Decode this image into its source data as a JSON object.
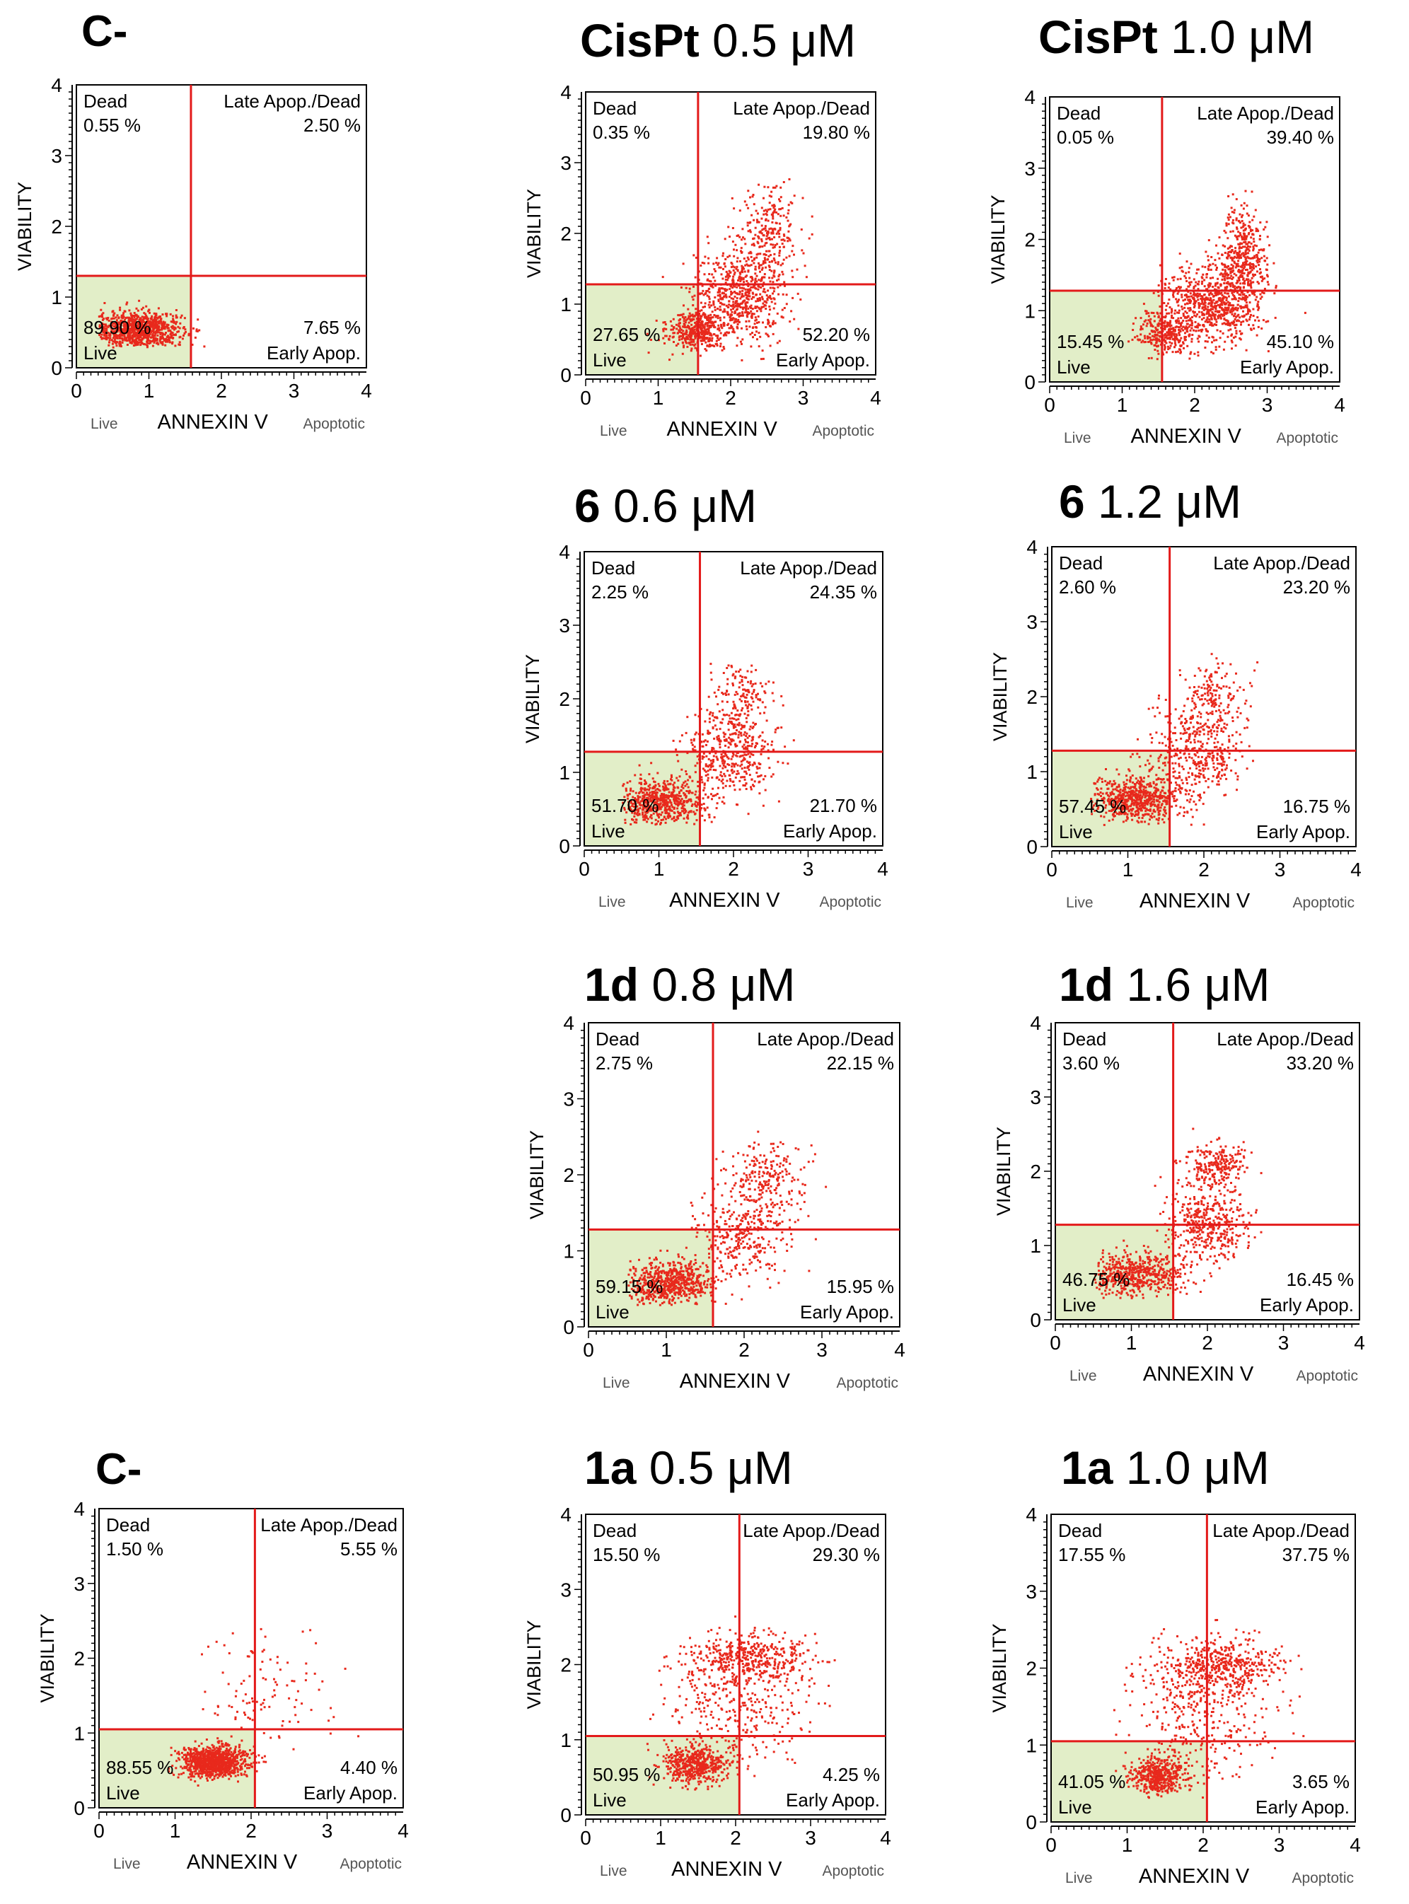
{
  "colors": {
    "dots": "#e8291c",
    "gate_line": "#e31a1a",
    "live_fill": "#e2eec8",
    "axis": "#000000",
    "frame": "#000000"
  },
  "common": {
    "xlabel": "ANNEXIN V",
    "ylabel": "VIABILITY",
    "x_left_label": "Live",
    "x_right_label": "Apoptotic",
    "x_ticks": [
      "0",
      "1",
      "2",
      "3",
      "4"
    ],
    "y_ticks": [
      "0",
      "1",
      "2",
      "3",
      "4"
    ],
    "q_dead": "Dead",
    "q_late": "Late Apop./Dead",
    "q_live": "Live",
    "q_early": "Early Apop."
  },
  "chart_data": [
    {
      "type": "scatter",
      "title_bold": "C-",
      "title_rest": "",
      "xlim": [
        0,
        4
      ],
      "ylim": [
        0,
        4
      ],
      "gate": {
        "x": 1.58,
        "y": 1.3
      },
      "quadrants": {
        "dead": "0.55 %",
        "late": "2.50 %",
        "live": "89.90 %",
        "early": "7.65 %"
      },
      "clusters": [
        {
          "x": 0.85,
          "y": 0.55,
          "sx": 0.3,
          "sy": 0.13,
          "n": 950
        }
      ],
      "scatter_extent": {
        "x": [
          0.3,
          2.3
        ],
        "y": [
          0.3,
          2.3
        ]
      }
    },
    {
      "type": "scatter",
      "title_bold": "CisPt",
      "title_rest": " 0.5 μM",
      "xlim": [
        0,
        4
      ],
      "ylim": [
        0,
        4
      ],
      "gate": {
        "x": 1.55,
        "y": 1.28
      },
      "quadrants": {
        "dead": "0.35 %",
        "late": "19.80 %",
        "live": "27.65 %",
        "early": "52.20 %"
      },
      "clusters": [
        {
          "x": 1.5,
          "y": 0.65,
          "sx": 0.2,
          "sy": 0.14,
          "n": 400
        },
        {
          "x": 2.1,
          "y": 1.1,
          "sx": 0.32,
          "sy": 0.32,
          "n": 650
        },
        {
          "x": 2.5,
          "y": 2.0,
          "sx": 0.22,
          "sy": 0.35,
          "n": 260
        }
      ],
      "scatter_extent": {
        "x": [
          0.7,
          3.5
        ],
        "y": [
          0.2,
          2.9
        ]
      }
    },
    {
      "type": "scatter",
      "title_bold": "CisPt",
      "title_rest": " 1.0 μM",
      "xlim": [
        0,
        4
      ],
      "ylim": [
        0,
        4
      ],
      "gate": {
        "x": 1.55,
        "y": 1.28
      },
      "quadrants": {
        "dead": "0.05 %",
        "late": "39.40 %",
        "live": "15.45 %",
        "early": "45.10 %"
      },
      "clusters": [
        {
          "x": 1.6,
          "y": 0.7,
          "sx": 0.2,
          "sy": 0.16,
          "n": 320
        },
        {
          "x": 2.2,
          "y": 1.1,
          "sx": 0.32,
          "sy": 0.28,
          "n": 650
        },
        {
          "x": 2.65,
          "y": 1.7,
          "sx": 0.16,
          "sy": 0.4,
          "n": 480
        }
      ],
      "scatter_extent": {
        "x": [
          0.5,
          3.6
        ],
        "y": [
          0.2,
          2.7
        ]
      }
    },
    {
      "type": "scatter",
      "title_bold": "6",
      "title_rest": " 0.6 μM",
      "xlim": [
        0,
        4
      ],
      "ylim": [
        0,
        4
      ],
      "gate": {
        "x": 1.55,
        "y": 1.28
      },
      "quadrants": {
        "dead": "2.25 %",
        "late": "24.35 %",
        "live": "51.70 %",
        "early": "21.70 %"
      },
      "clusters": [
        {
          "x": 1.0,
          "y": 0.6,
          "sx": 0.3,
          "sy": 0.16,
          "n": 640
        },
        {
          "x": 1.9,
          "y": 1.25,
          "sx": 0.32,
          "sy": 0.3,
          "n": 420
        },
        {
          "x": 2.1,
          "y": 2.0,
          "sx": 0.2,
          "sy": 0.25,
          "n": 160
        }
      ],
      "scatter_extent": {
        "x": [
          0.5,
          3.3
        ],
        "y": [
          0.3,
          2.6
        ]
      }
    },
    {
      "type": "scatter",
      "title_bold": "6",
      "title_rest": " 1.2 μM",
      "xlim": [
        0,
        4
      ],
      "ylim": [
        0,
        4
      ],
      "gate": {
        "x": 1.55,
        "y": 1.28
      },
      "quadrants": {
        "dead": "2.60 %",
        "late": "23.20 %",
        "live": "57.45 %",
        "early": "16.75 %"
      },
      "clusters": [
        {
          "x": 1.1,
          "y": 0.65,
          "sx": 0.3,
          "sy": 0.16,
          "n": 680
        },
        {
          "x": 1.9,
          "y": 1.3,
          "sx": 0.3,
          "sy": 0.3,
          "n": 380
        },
        {
          "x": 2.1,
          "y": 2.0,
          "sx": 0.22,
          "sy": 0.25,
          "n": 160
        }
      ],
      "scatter_extent": {
        "x": [
          0.5,
          3.4
        ],
        "y": [
          0.3,
          2.6
        ]
      }
    },
    {
      "type": "scatter",
      "title_bold": "1d",
      "title_rest": " 0.8 μM",
      "xlim": [
        0,
        4
      ],
      "ylim": [
        0,
        4
      ],
      "gate": {
        "x": 1.6,
        "y": 1.28
      },
      "quadrants": {
        "dead": "2.75 %",
        "late": "22.15 %",
        "live": "59.15 %",
        "early": "15.95 %"
      },
      "clusters": [
        {
          "x": 1.0,
          "y": 0.6,
          "sx": 0.3,
          "sy": 0.15,
          "n": 680
        },
        {
          "x": 2.0,
          "y": 1.25,
          "sx": 0.3,
          "sy": 0.3,
          "n": 340
        },
        {
          "x": 2.3,
          "y": 2.0,
          "sx": 0.25,
          "sy": 0.22,
          "n": 200
        }
      ],
      "scatter_extent": {
        "x": [
          0.5,
          3.5
        ],
        "y": [
          0.3,
          2.6
        ]
      }
    },
    {
      "type": "scatter",
      "title_bold": "1d",
      "title_rest": " 1.6 μM",
      "xlim": [
        0,
        4
      ],
      "ylim": [
        0,
        4
      ],
      "gate": {
        "x": 1.55,
        "y": 1.28
      },
      "quadrants": {
        "dead": "3.60 %",
        "late": "33.20 %",
        "live": "46.75 %",
        "early": "16.45 %"
      },
      "clusters": [
        {
          "x": 1.05,
          "y": 0.62,
          "sx": 0.3,
          "sy": 0.15,
          "n": 560
        },
        {
          "x": 2.0,
          "y": 1.3,
          "sx": 0.28,
          "sy": 0.25,
          "n": 420
        },
        {
          "x": 2.1,
          "y": 2.1,
          "sx": 0.2,
          "sy": 0.15,
          "n": 230
        }
      ],
      "scatter_extent": {
        "x": [
          0.5,
          3.5
        ],
        "y": [
          0.3,
          2.6
        ]
      }
    },
    {
      "type": "scatter",
      "title_bold": "C-",
      "title_rest": "",
      "xlim": [
        0,
        4
      ],
      "ylim": [
        0,
        4
      ],
      "gate": {
        "x": 2.05,
        "y": 1.05
      },
      "quadrants": {
        "dead": "1.50 %",
        "late": "5.55 %",
        "live": "88.55 %",
        "early": "4.40 %"
      },
      "clusters": [
        {
          "x": 1.5,
          "y": 0.63,
          "sx": 0.22,
          "sy": 0.11,
          "n": 950
        },
        {
          "x": 2.2,
          "y": 1.5,
          "sx": 0.45,
          "sy": 0.45,
          "n": 110
        }
      ],
      "scatter_extent": {
        "x": [
          0.9,
          3.5
        ],
        "y": [
          0.3,
          2.5
        ]
      }
    },
    {
      "type": "scatter",
      "title_bold": "1a",
      "title_rest": " 0.5 μM",
      "xlim": [
        0,
        4
      ],
      "ylim": [
        0,
        4
      ],
      "gate": {
        "x": 2.05,
        "y": 1.05
      },
      "quadrants": {
        "dead": "15.50 %",
        "late": "29.30 %",
        "live": "50.95 %",
        "early": "4.25 %"
      },
      "clusters": [
        {
          "x": 1.45,
          "y": 0.68,
          "sx": 0.2,
          "sy": 0.13,
          "n": 520
        },
        {
          "x": 2.2,
          "y": 2.1,
          "sx": 0.4,
          "sy": 0.15,
          "n": 380
        },
        {
          "x": 2.0,
          "y": 1.5,
          "sx": 0.5,
          "sy": 0.45,
          "n": 380
        }
      ],
      "scatter_extent": {
        "x": [
          0.8,
          3.4
        ],
        "y": [
          0.3,
          2.8
        ]
      }
    },
    {
      "type": "scatter",
      "title_bold": "1a",
      "title_rest": " 1.0 μM",
      "xlim": [
        0,
        4
      ],
      "ylim": [
        0,
        4
      ],
      "gate": {
        "x": 2.05,
        "y": 1.05
      },
      "quadrants": {
        "dead": "17.55 %",
        "late": "37.75 %",
        "live": "41.05 %",
        "early": "3.65 %"
      },
      "clusters": [
        {
          "x": 1.4,
          "y": 0.6,
          "sx": 0.18,
          "sy": 0.12,
          "n": 460
        },
        {
          "x": 2.2,
          "y": 2.05,
          "sx": 0.4,
          "sy": 0.15,
          "n": 400
        },
        {
          "x": 2.0,
          "y": 1.5,
          "sx": 0.5,
          "sy": 0.45,
          "n": 420
        }
      ],
      "scatter_extent": {
        "x": [
          0.8,
          3.4
        ],
        "y": [
          0.3,
          2.7
        ]
      }
    }
  ]
}
